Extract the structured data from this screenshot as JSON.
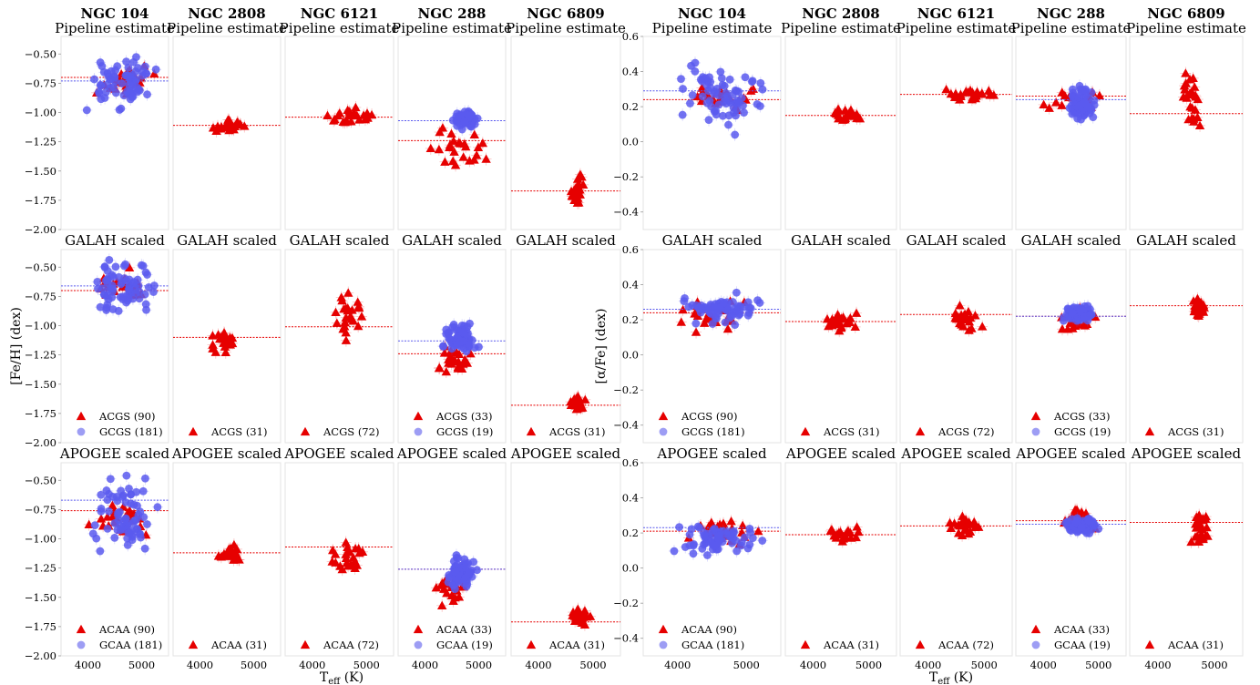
{
  "chart_data": {
    "type": "scatter",
    "clusters": [
      "NGC 104",
      "NGC 2808",
      "NGC 6121",
      "NGC 288",
      "NGC 6809"
    ],
    "rows": [
      "Pipeline estimate",
      "GALAH scaled",
      "APOGEE scaled"
    ],
    "xlabel": "T_eff (K)",
    "xlabel_main": "T",
    "xlabel_sub": "eff",
    "xlabel_unit": " (K)",
    "xlim": [
      3500,
      5500
    ],
    "xticks": [
      "4000",
      "5000"
    ],
    "series_colors": {
      "red": "#e60000",
      "blue": "#5a5aee"
    },
    "panels_fe": {
      "ylabel": "[Fe/H] (dex)",
      "ylim": [
        -2.0,
        -0.35
      ],
      "yticks": [
        "−0.50",
        "−0.75",
        "−1.00",
        "−1.25",
        "−1.50",
        "−1.75",
        "−2.00"
      ],
      "rows": [
        [
          {
            "red": {
              "mean": -0.7,
              "teff": [
                4100,
                5300
              ],
              "y": [
                -0.92,
                -0.55
              ]
            },
            "blue": {
              "mean": -0.73,
              "teff": [
                3950,
                5300
              ],
              "y": [
                -0.98,
                -0.52
              ]
            }
          },
          {
            "red": {
              "mean": -1.11,
              "teff": [
                4200,
                4900
              ],
              "y": [
                -1.18,
                -1.05
              ]
            }
          },
          {
            "red": {
              "mean": -1.04,
              "teff": [
                4200,
                5300
              ],
              "y": [
                -1.12,
                -0.95
              ]
            }
          },
          {
            "red": {
              "mean": -1.24,
              "teff": [
                4100,
                5200
              ],
              "y": [
                -1.48,
                -1.12
              ]
            },
            "blue": {
              "mean": -1.07,
              "teff": [
                4500,
                5000
              ],
              "y": [
                -1.15,
                -0.97
              ]
            }
          },
          {
            "red": {
              "mean": -1.67,
              "teff": [
                4550,
                4900
              ],
              "y": [
                -1.8,
                -1.53
              ]
            }
          }
        ],
        [
          {
            "red": {
              "mean": -0.7,
              "teff": [
                3950,
                5200
              ],
              "y": [
                -0.85,
                -0.5
              ]
            },
            "blue": {
              "mean": -0.66,
              "teff": [
                3900,
                5300
              ],
              "y": [
                -0.92,
                -0.42
              ]
            },
            "legend": [
              {
                "series": "red",
                "label": "ACGS (90)"
              },
              {
                "series": "blue",
                "label": "GCGS (181)"
              }
            ]
          },
          {
            "red": {
              "mean": -1.1,
              "teff": [
                4150,
                4850
              ],
              "y": [
                -1.25,
                -1.0
              ]
            },
            "legend": [
              {
                "series": "red",
                "label": "ACGS (31)"
              }
            ]
          },
          {
            "red": {
              "mean": -1.01,
              "teff": [
                4300,
                5000
              ],
              "y": [
                -1.22,
                -0.72
              ]
            },
            "legend": [
              {
                "series": "red",
                "label": "ACGS (72)"
              }
            ]
          },
          {
            "red": {
              "mean": -1.24,
              "teff": [
                4200,
                5000
              ],
              "y": [
                -1.49,
                -1.1
              ]
            },
            "blue": {
              "mean": -1.13,
              "teff": [
                4300,
                5000
              ],
              "y": [
                -1.25,
                -0.96
              ]
            },
            "legend": [
              {
                "series": "red",
                "label": "ACGS (33)"
              },
              {
                "series": "blue",
                "label": "GCGS (19)"
              }
            ]
          },
          {
            "red": {
              "mean": -1.68,
              "teff": [
                4550,
                4900
              ],
              "y": [
                -1.74,
                -1.58
              ]
            },
            "legend": [
              {
                "series": "red",
                "label": "ACGS (31)"
              }
            ]
          }
        ],
        [
          {
            "red": {
              "mean": -0.76,
              "teff": [
                3950,
                5300
              ],
              "y": [
                -0.98,
                -0.66
              ]
            },
            "blue": {
              "mean": -0.67,
              "teff": [
                3950,
                5300
              ],
              "y": [
                -1.15,
                -0.46
              ]
            },
            "legend": [
              {
                "series": "red",
                "label": "ACAA (90)"
              },
              {
                "series": "blue",
                "label": "GCAA (181)"
              }
            ]
          },
          {
            "red": {
              "mean": -1.12,
              "teff": [
                4200,
                4950
              ],
              "y": [
                -1.22,
                -1.03
              ]
            },
            "legend": [
              {
                "series": "red",
                "label": "ACAA (31)"
              }
            ]
          },
          {
            "red": {
              "mean": -1.07,
              "teff": [
                4300,
                5000
              ],
              "y": [
                -1.35,
                -0.99
              ]
            },
            "legend": [
              {
                "series": "red",
                "label": "ACAA (72)"
              }
            ]
          },
          {
            "red": {
              "mean": -1.26,
              "teff": [
                4100,
                5000
              ],
              "y": [
                -1.6,
                -1.2
              ]
            },
            "blue": {
              "mean": -1.26,
              "teff": [
                4300,
                5000
              ],
              "y": [
                -1.45,
                -1.14
              ]
            },
            "legend": [
              {
                "series": "red",
                "label": "ACAA (33)"
              },
              {
                "series": "blue",
                "label": "GCAA (19)"
              }
            ]
          },
          {
            "red": {
              "mean": -1.71,
              "teff": [
                4550,
                4950
              ],
              "y": [
                -1.75,
                -1.58
              ]
            },
            "legend": [
              {
                "series": "red",
                "label": "ACAA (31)"
              }
            ]
          }
        ]
      ]
    },
    "panels_alpha": {
      "ylabel": "[α/Fe] (dex)",
      "ylim": [
        -0.5,
        0.6
      ],
      "yticks": [
        "0.6",
        "0.4",
        "0.2",
        "0.0",
        "−0.2",
        "−0.4"
      ],
      "rows": [
        [
          {
            "red": {
              "mean": 0.24,
              "teff": [
                4000,
                5300
              ],
              "y": [
                0.18,
                0.34
              ]
            },
            "blue": {
              "mean": 0.29,
              "teff": [
                3950,
                5300
              ],
              "y": [
                0.04,
                0.49
              ]
            }
          },
          {
            "red": {
              "mean": 0.15,
              "teff": [
                4200,
                4900
              ],
              "y": [
                0.11,
                0.19
              ]
            }
          },
          {
            "red": {
              "mean": 0.27,
              "teff": [
                4200,
                5300
              ],
              "y": [
                0.23,
                0.31
              ]
            }
          },
          {
            "red": {
              "mean": 0.26,
              "teff": [
                4000,
                5200
              ],
              "y": [
                0.18,
                0.3
              ]
            },
            "blue": {
              "mean": 0.24,
              "teff": [
                4400,
                5000
              ],
              "y": [
                0.09,
                0.33
              ]
            }
          },
          {
            "red": {
              "mean": 0.16,
              "teff": [
                4350,
                4900
              ],
              "y": [
                0.04,
                0.41
              ]
            }
          }
        ],
        [
          {
            "red": {
              "mean": 0.24,
              "teff": [
                3950,
                5200
              ],
              "y": [
                0.13,
                0.33
              ]
            },
            "blue": {
              "mean": 0.26,
              "teff": [
                3950,
                5300
              ],
              "y": [
                0.17,
                0.36
              ]
            },
            "legend": [
              {
                "series": "red",
                "label": "ACGS (90)"
              },
              {
                "series": "blue",
                "label": "GCGS (181)"
              }
            ]
          },
          {
            "red": {
              "mean": 0.19,
              "teff": [
                4150,
                4850
              ],
              "y": [
                0.13,
                0.25
              ]
            },
            "legend": [
              {
                "series": "red",
                "label": "ACGS (31)"
              }
            ]
          },
          {
            "red": {
              "mean": 0.23,
              "teff": [
                4300,
                5000
              ],
              "y": [
                0.1,
                0.32
              ]
            },
            "legend": [
              {
                "series": "red",
                "label": "ACGS (72)"
              }
            ]
          },
          {
            "red": {
              "mean": 0.22,
              "teff": [
                4200,
                5000
              ],
              "y": [
                0.12,
                0.28
              ]
            },
            "blue": {
              "mean": 0.22,
              "teff": [
                4300,
                5000
              ],
              "y": [
                0.17,
                0.29
              ]
            },
            "legend": [
              {
                "series": "red",
                "label": "ACGS (33)"
              },
              {
                "series": "blue",
                "label": "GCGS (19)"
              }
            ]
          },
          {
            "red": {
              "mean": 0.28,
              "teff": [
                4550,
                4900
              ],
              "y": [
                0.22,
                0.32
              ]
            },
            "legend": [
              {
                "series": "red",
                "label": "ACGS (31)"
              }
            ]
          }
        ],
        [
          {
            "red": {
              "mean": 0.21,
              "teff": [
                4000,
                5300
              ],
              "y": [
                0.12,
                0.3
              ]
            },
            "blue": {
              "mean": 0.23,
              "teff": [
                3950,
                5300
              ],
              "y": [
                0.06,
                0.28
              ]
            },
            "legend": [
              {
                "series": "red",
                "label": "ACAA (90)"
              },
              {
                "series": "blue",
                "label": "GCAA (181)"
              }
            ]
          },
          {
            "red": {
              "mean": 0.19,
              "teff": [
                4200,
                4950
              ],
              "y": [
                0.14,
                0.24
              ]
            },
            "legend": [
              {
                "series": "red",
                "label": "ACAA (31)"
              }
            ]
          },
          {
            "red": {
              "mean": 0.24,
              "teff": [
                4300,
                5000
              ],
              "y": [
                0.18,
                0.3
              ]
            },
            "legend": [
              {
                "series": "red",
                "label": "ACAA (72)"
              }
            ]
          },
          {
            "red": {
              "mean": 0.27,
              "teff": [
                4200,
                5000
              ],
              "y": [
                0.21,
                0.34
              ]
            },
            "blue": {
              "mean": 0.25,
              "teff": [
                4300,
                5000
              ],
              "y": [
                0.19,
                0.3
              ]
            },
            "legend": [
              {
                "series": "red",
                "label": "ACAA (33)"
              },
              {
                "series": "blue",
                "label": "GCAA (19)"
              }
            ]
          },
          {
            "red": {
              "mean": 0.26,
              "teff": [
                4550,
                4950
              ],
              "y": [
                0.11,
                0.34
              ]
            },
            "legend": [
              {
                "series": "red",
                "label": "ACAA (31)"
              }
            ]
          }
        ]
      ]
    }
  }
}
